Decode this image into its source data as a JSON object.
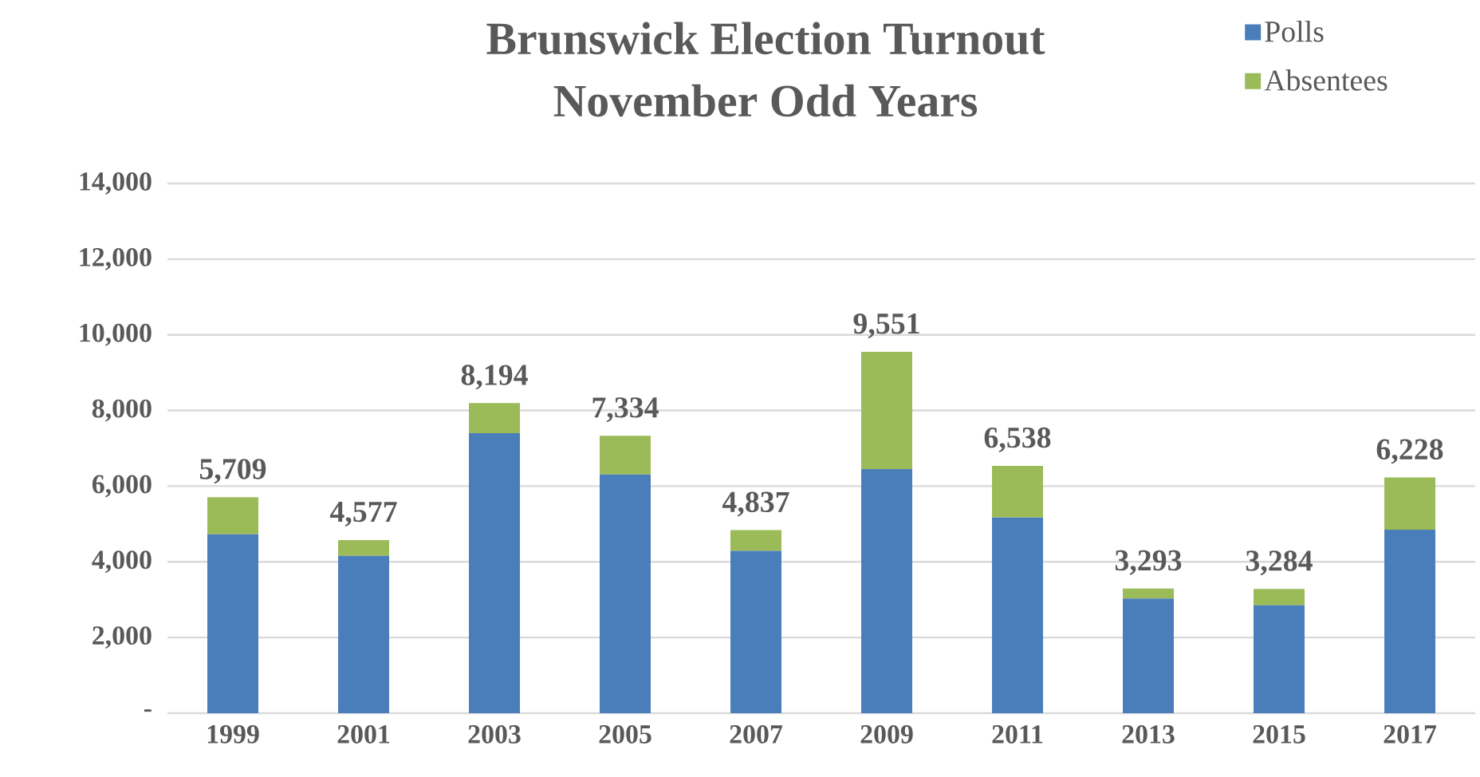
{
  "chart_data": {
    "type": "bar",
    "title": "Brunswick Election Turnout",
    "subtitle": "November Odd Years",
    "categories": [
      "1999",
      "2001",
      "2003",
      "2005",
      "2007",
      "2009",
      "2011",
      "2013",
      "2015",
      "2017"
    ],
    "series": [
      {
        "name": "Polls",
        "color": "#4a7ebb",
        "values": [
          4730,
          4160,
          7400,
          6310,
          4290,
          6450,
          5170,
          3030,
          2850,
          4850
        ]
      },
      {
        "name": "Absentees",
        "color": "#9bbb59",
        "values": [
          979,
          417,
          794,
          1024,
          547,
          3101,
          1368,
          263,
          434,
          1378
        ]
      }
    ],
    "stacked": true,
    "totals": [
      "5,709",
      "4,577",
      "8,194",
      "7,334",
      "4,837",
      "9,551",
      "6,538",
      "3,293",
      "3,284",
      "6,228"
    ],
    "ylim": [
      0,
      14000
    ],
    "yticks": [
      {
        "value": 0,
        "label": "-"
      },
      {
        "value": 2000,
        "label": "2,000"
      },
      {
        "value": 4000,
        "label": "4,000"
      },
      {
        "value": 6000,
        "label": "6,000"
      },
      {
        "value": 8000,
        "label": "8,000"
      },
      {
        "value": 10000,
        "label": "10,000"
      },
      {
        "value": 12000,
        "label": "12,000"
      },
      {
        "value": 14000,
        "label": "14,000"
      }
    ],
    "grid": "y",
    "legend": "top right"
  }
}
